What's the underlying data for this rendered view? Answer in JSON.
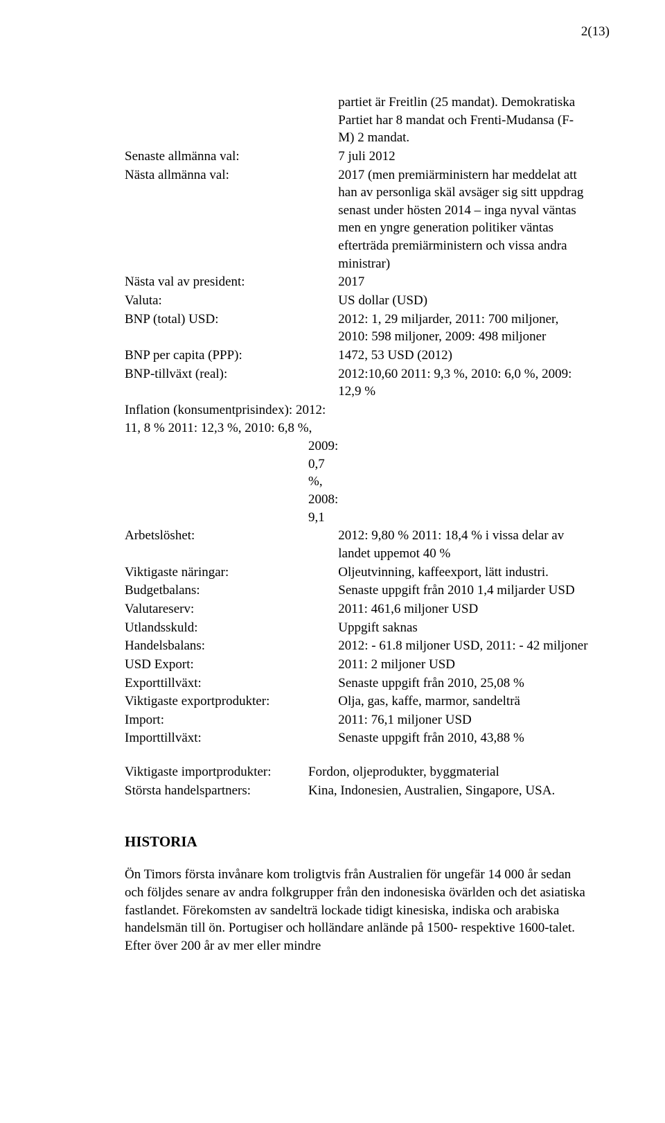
{
  "page_number": "2(13)",
  "rows": [
    {
      "label": "",
      "value": "partiet är Freitlin (25 mandat). Demokratiska Partiet har 8 mandat och Frenti-Mudansa (F-M) 2 mandat."
    },
    {
      "label": "Senaste allmänna val:",
      "value": "7 juli 2012"
    },
    {
      "label": "Nästa allmänna val:",
      "value": "2017 (men premiärministern har meddelat att han av personliga skäl avsäger sig sitt uppdrag senast under hösten 2014 – inga nyval väntas men en yngre generation politiker väntas efterträda premiärministern och vissa andra ministrar)"
    },
    {
      "label": "Nästa val av president:",
      "value": "2017"
    },
    {
      "label": "Valuta:",
      "value": "US dollar (USD)"
    },
    {
      "label": "BNP (total) USD:",
      "value": "2012: 1, 29 miljarder, 2011: 700 miljoner, 2010: 598 miljoner, 2009: 498 miljoner"
    },
    {
      "label": "BNP per capita (PPP):",
      "value": "1472, 53 USD (2012)"
    },
    {
      "label": "BNP-tillväxt (real):",
      "value": "2012:10,60 2011: 9,3 %, 2010: 6,0 %, 2009: 12,9 %"
    },
    {
      "label": "Inflation (konsumentprisindex):",
      "value": "2012: 11, 8 % 2011: 12,3 %, 2010: 6,8 %, 2009: 0,7 %, 2008: 9,1",
      "inflation": true
    },
    {
      "label": "Arbetslöshet:",
      "value": "2012: 9,80 % 2011: 18,4 % i vissa delar av landet uppemot 40 %"
    },
    {
      "label": "Viktigaste näringar:",
      "value": "Oljeutvinning, kaffeexport, lätt industri."
    },
    {
      "label": "Budgetbalans:",
      "value": "Senaste uppgift från 2010 1,4 miljarder USD"
    },
    {
      "label": "Valutareserv:",
      "value": "2011: 461,6 miljoner USD"
    },
    {
      "label": "Utlandsskuld:",
      "value": "Uppgift saknas"
    },
    {
      "label": "Handelsbalans:",
      "value": "2012: - 61.8 miljoner USD, 2011: - 42 miljoner"
    },
    {
      "label": "USD Export:",
      "value": "2011: 2 miljoner USD"
    },
    {
      "label": "Exporttillväxt:",
      "value": "Senaste uppgift från 2010, 25,08 %"
    },
    {
      "label": "Viktigaste exportprodukter:",
      "value": "Olja, gas, kaffe, marmor, sandelträ"
    },
    {
      "label": "Import:",
      "value": "2011: 76,1 miljoner USD"
    },
    {
      "label": "Importtillväxt:",
      "value": "Senaste uppgift från 2010, 43,88 %"
    }
  ],
  "rows2": [
    {
      "label": "Viktigaste importprodukter:",
      "value": "Fordon, oljeprodukter, byggmaterial"
    },
    {
      "label": "Största handelspartners:",
      "value": "Kina, Indonesien, Australien, Singapore, USA."
    }
  ],
  "heading": "HISTORIA",
  "body": "Ön Timors första invånare kom troligtvis från Australien för ungefär 14 000 år sedan och följdes senare av andra folkgrupper från den indonesiska övärlden och det asiatiska fastlandet. Förekomsten av sandelträ lockade tidigt kinesiska, indiska och arabiska handelsmän till ön. Portugiser och holländare anlände på 1500- respektive 1600-talet. Efter över 200 år av mer eller mindre"
}
